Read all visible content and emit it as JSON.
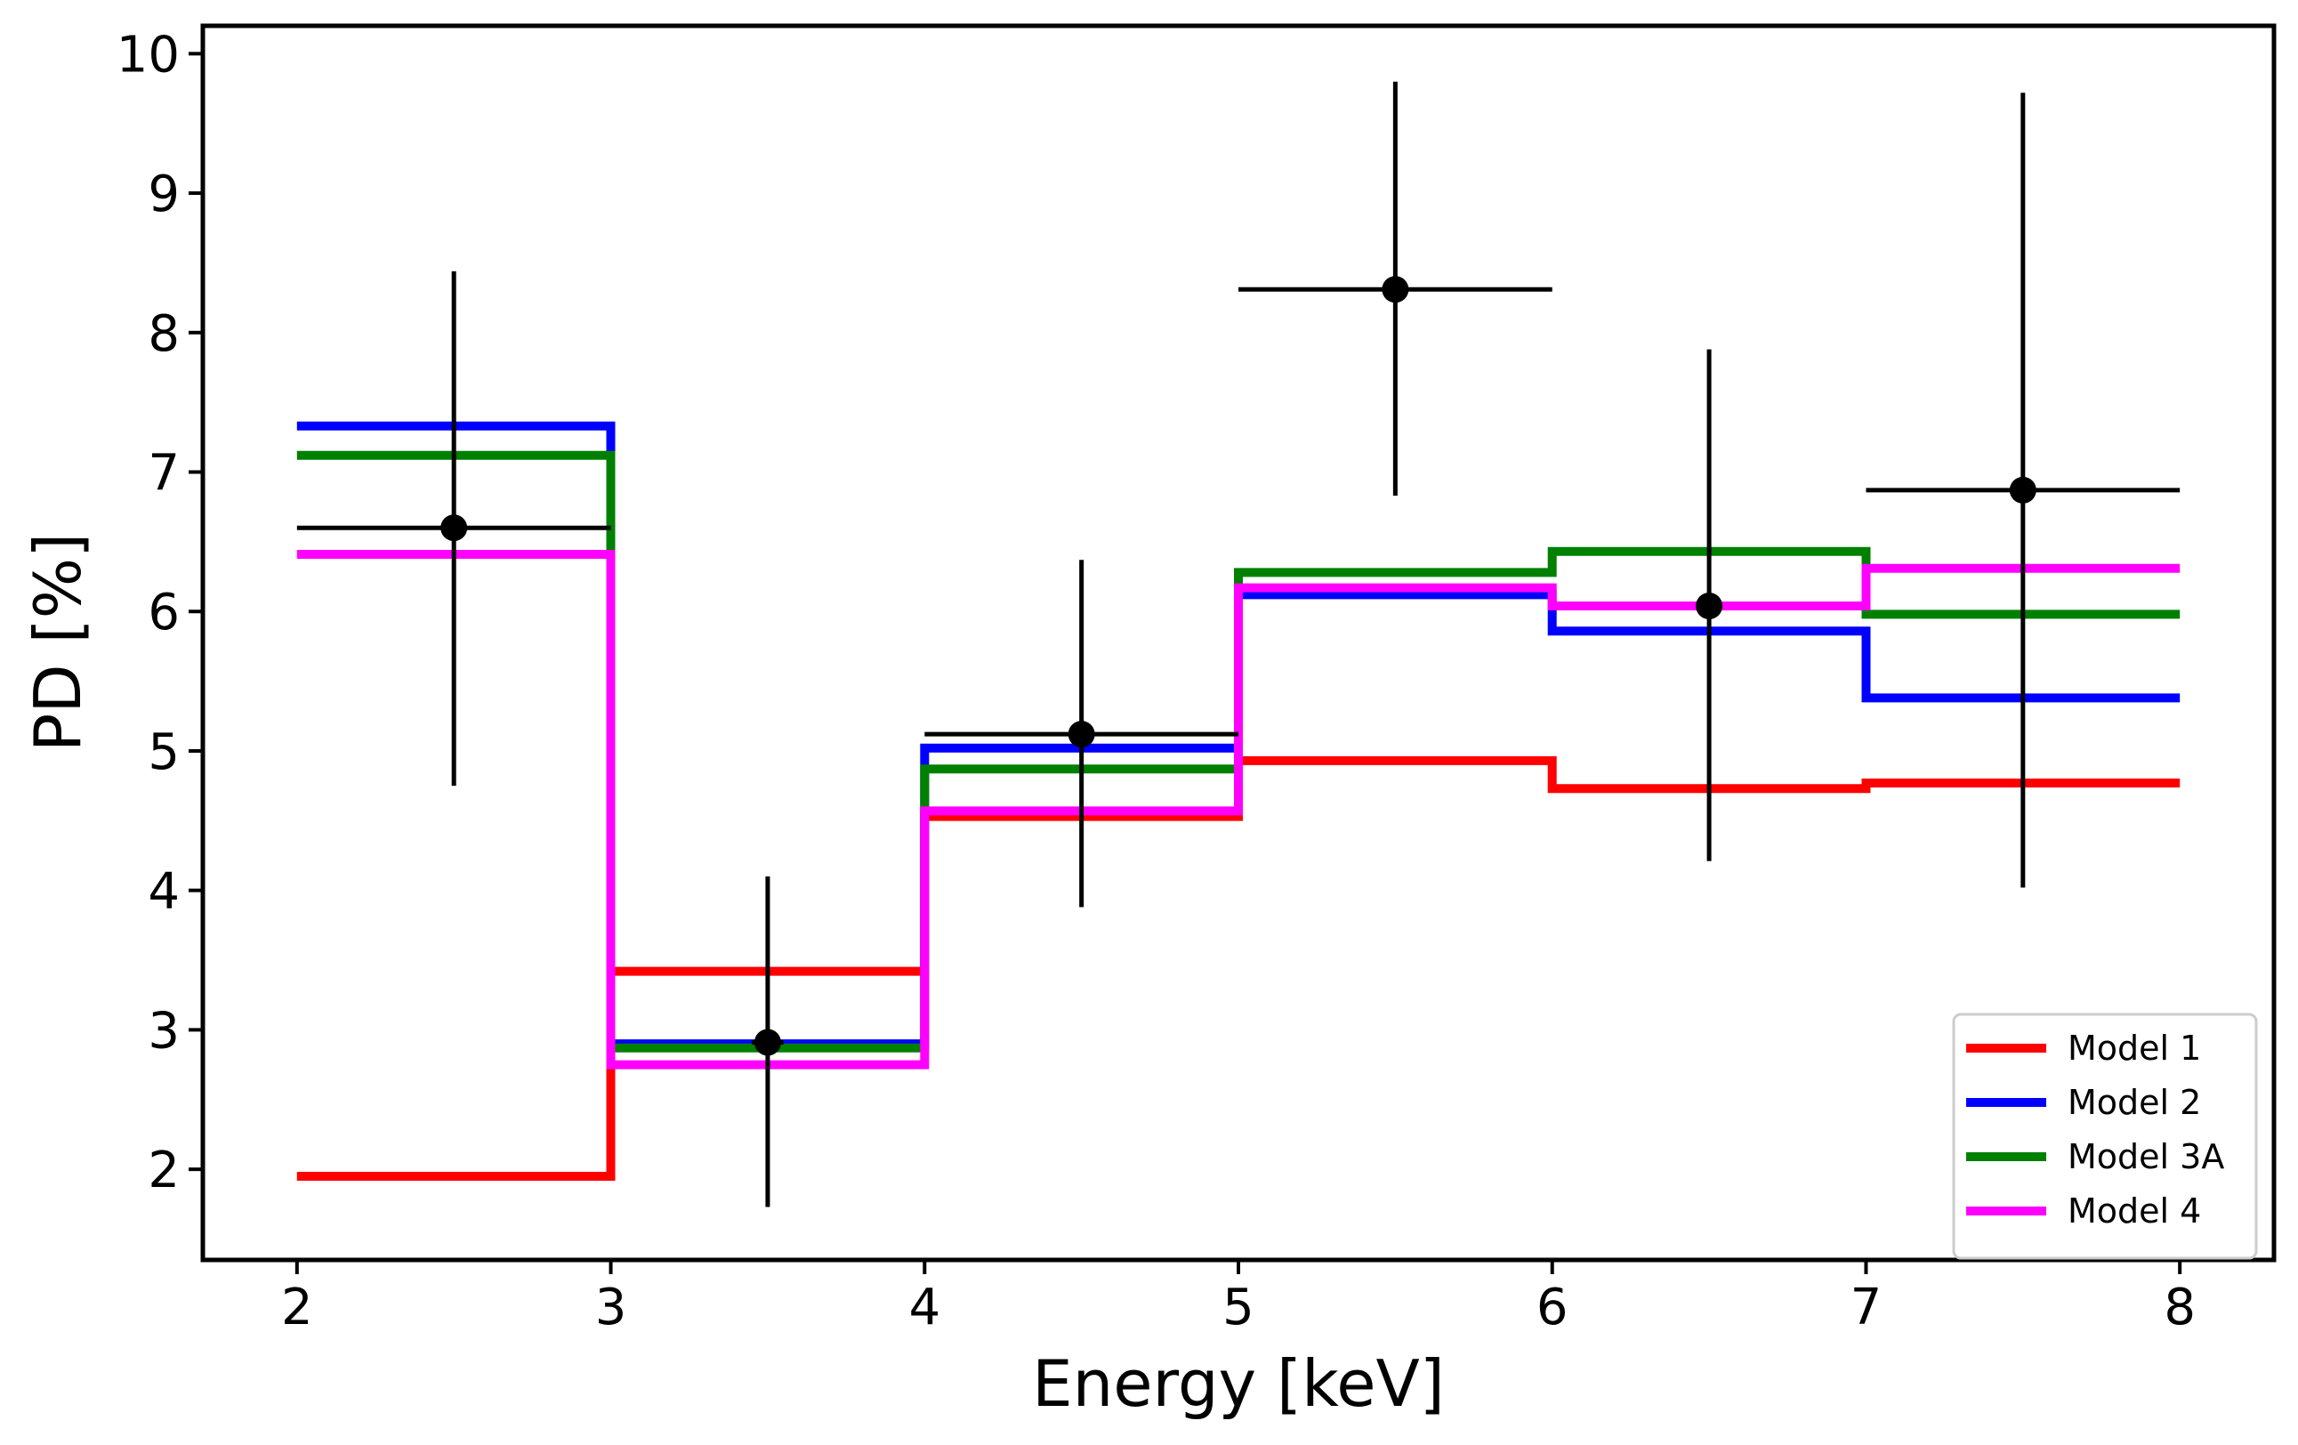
{
  "chart_data": {
    "type": "line",
    "title": "",
    "xlabel": "Energy [keV]",
    "ylabel": "PD [%]",
    "xlim": [
      1.7,
      8.3
    ],
    "ylim": [
      1.35,
      10.2
    ],
    "xticks": [
      "2",
      "3",
      "4",
      "5",
      "6",
      "7",
      "8"
    ],
    "yticks": [
      "2",
      "3",
      "4",
      "5",
      "6",
      "7",
      "8",
      "9",
      "10"
    ],
    "bin_edges": [
      2,
      3,
      4,
      5,
      6,
      7,
      8
    ],
    "series": [
      {
        "name": "Model 1",
        "color": "#ff0000",
        "values": [
          1.95,
          3.42,
          4.53,
          4.93,
          4.73,
          4.77
        ]
      },
      {
        "name": "Model 2",
        "color": "#0000ff",
        "values": [
          7.33,
          2.9,
          5.02,
          6.12,
          5.86,
          5.38
        ]
      },
      {
        "name": "Model 3A",
        "color": "#008000",
        "values": [
          7.12,
          2.87,
          4.87,
          6.28,
          6.43,
          5.98
        ]
      },
      {
        "name": "Model 4",
        "color": "#ff00ff",
        "values": [
          6.41,
          2.75,
          4.57,
          6.17,
          6.04,
          6.31
        ]
      }
    ],
    "data_points": [
      {
        "x": 2.5,
        "y": 6.6,
        "xerr": 0.5,
        "yerr_low": 1.85,
        "yerr_high": 1.84
      },
      {
        "x": 3.5,
        "y": 2.91,
        "xerr": 0.05,
        "yerr_low": 1.18,
        "yerr_high": 1.19
      },
      {
        "x": 4.5,
        "y": 5.12,
        "xerr": 0.5,
        "yerr_low": 1.24,
        "yerr_high": 1.25
      },
      {
        "x": 5.5,
        "y": 8.31,
        "xerr": 0.5,
        "yerr_low": 1.48,
        "yerr_high": 1.49
      },
      {
        "x": 6.5,
        "y": 6.04,
        "xerr": 0.0,
        "yerr_low": 1.83,
        "yerr_high": 1.84
      },
      {
        "x": 7.5,
        "y": 6.87,
        "xerr": 0.5,
        "yerr_low": 2.85,
        "yerr_high": 2.85
      }
    ],
    "legend_position": "lower-right",
    "grid": false
  }
}
